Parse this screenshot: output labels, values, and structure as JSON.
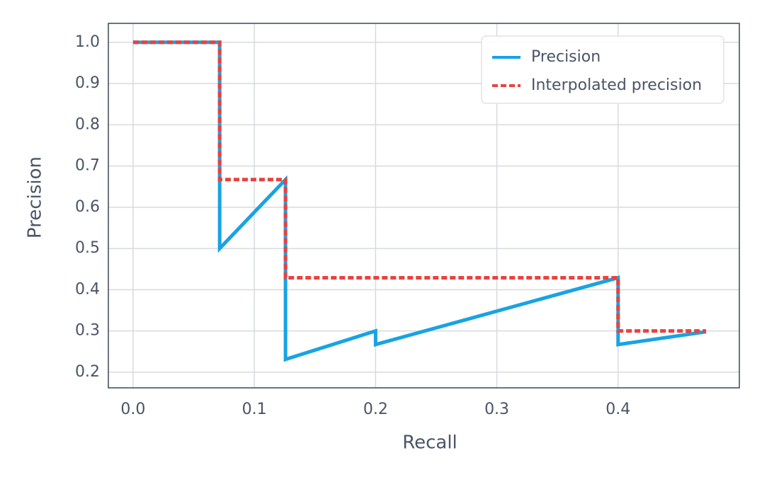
{
  "chart_data": {
    "type": "line",
    "x_label": "Recall",
    "y_label": "Precision",
    "series": [
      {
        "name": "Precision",
        "color": "#18a3e3",
        "style": "solid",
        "x": [
          0,
          0.0714,
          0.0714,
          0.1257,
          0.1257,
          0.2,
          0.2,
          0.4,
          0.4,
          0.4726
        ],
        "values": [
          1.0,
          1.0,
          0.5,
          0.667,
          0.231,
          0.3,
          0.267,
          0.429,
          0.267,
          0.298
        ]
      },
      {
        "name": "Interpolated precision",
        "color": "#e8423f",
        "style": "dashed",
        "x": [
          0,
          0.0714,
          0.0714,
          0.1257,
          0.1257,
          0.4,
          0.4,
          0.4726
        ],
        "values": [
          1.0,
          1.0,
          0.667,
          0.667,
          0.429,
          0.429,
          0.3,
          0.3
        ]
      }
    ],
    "xlim": [
      -0.0204,
      0.5
    ],
    "ylim": [
      0.162,
      1.046
    ],
    "xticks": [
      {
        "value": 0,
        "label": "0.0"
      },
      0.1,
      0.2,
      0.3,
      0.4
    ],
    "yticks": [
      0.2,
      0.3,
      0.4,
      0.5,
      0.6,
      0.7,
      0.8,
      0.9,
      {
        "value": 1,
        "label": "1.0"
      }
    ],
    "grid": true,
    "legend": "upper-right"
  }
}
